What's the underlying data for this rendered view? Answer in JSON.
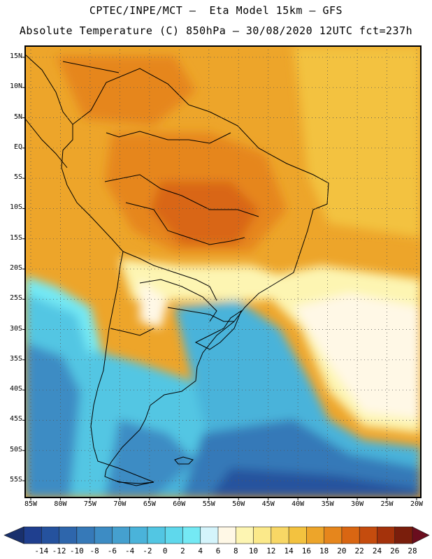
{
  "header": {
    "line1": "CPTEC/INPE/MCT –  Eta Model 15km – GFS",
    "line2": "Absolute Temperature (C) 850hPa – 30/08/2020 12UTC fct=237h"
  },
  "map": {
    "latitude_labels": [
      "15N",
      "10N",
      "5N",
      "EQ",
      "5S",
      "10S",
      "15S",
      "20S",
      "25S",
      "30S",
      "35S",
      "40S",
      "45S",
      "50S",
      "55S"
    ],
    "longitude_labels": [
      "85W",
      "80W",
      "75W",
      "70W",
      "65W",
      "60W",
      "55W",
      "50W",
      "45W",
      "40W",
      "35W",
      "30W",
      "25W",
      "20W"
    ],
    "extent": {
      "lon": [
        -86,
        -20
      ],
      "lat": [
        -58,
        16
      ]
    },
    "gridlines": "dotted"
  },
  "colorbar": {
    "labels": [
      "-14",
      "-12",
      "-10",
      "-8",
      "-6",
      "-4",
      "-2",
      "0",
      "2",
      "4",
      "6",
      "8",
      "10",
      "12",
      "14",
      "16",
      "18",
      "20",
      "22",
      "24",
      "26",
      "28"
    ],
    "colors": [
      "#1f3f8f",
      "#25529e",
      "#2e66ac",
      "#3679b8",
      "#3d8cc4",
      "#45a0cf",
      "#4ab3da",
      "#52c6e3",
      "#5fd8ec",
      "#74e9f4",
      "#d4f4fb",
      "#fff8e6",
      "#fdf5b2",
      "#fbe98a",
      "#f8d765",
      "#f3c23f",
      "#eda52a",
      "#e6861c",
      "#d96612",
      "#c54c0e",
      "#a4320b",
      "#7a1e0c"
    ],
    "left_arrow_color": "#19306d",
    "right_arrow_color": "#6a0d1e"
  },
  "field_colors": {
    "ocean_pacific_south": "#4ab3da",
    "atlantic_south_deep": "#25529e",
    "warm_core": "#d96612"
  }
}
